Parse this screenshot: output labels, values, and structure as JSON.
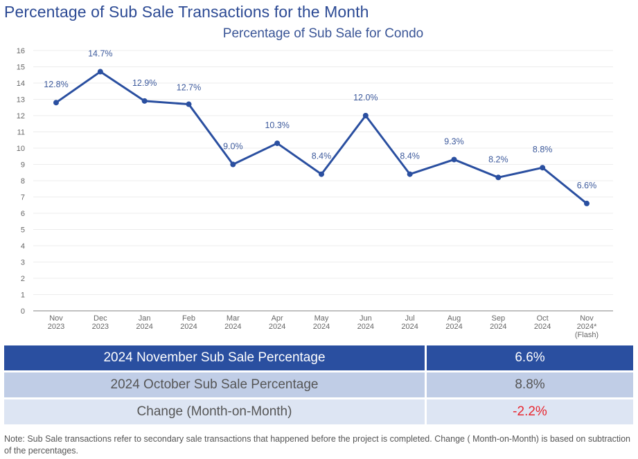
{
  "page": {
    "title": "Percentage of Sub Sale Transactions for the Month"
  },
  "chart_data": {
    "type": "line",
    "title": "Percentage of Sub Sale for Condo",
    "xlabel": "",
    "ylabel": "",
    "ylim": [
      0,
      16
    ],
    "yticks": [
      0,
      1,
      2,
      3,
      4,
      5,
      6,
      7,
      8,
      9,
      10,
      11,
      12,
      13,
      14,
      15,
      16
    ],
    "grid": true,
    "categories": [
      [
        "Nov",
        "2023"
      ],
      [
        "Dec",
        "2023"
      ],
      [
        "Jan",
        "2024"
      ],
      [
        "Feb",
        "2024"
      ],
      [
        "Mar",
        "2024"
      ],
      [
        "Apr",
        "2024"
      ],
      [
        "May",
        "2024"
      ],
      [
        "Jun",
        "2024"
      ],
      [
        "Jul",
        "2024"
      ],
      [
        "Aug",
        "2024"
      ],
      [
        "Sep",
        "2024"
      ],
      [
        "Oct",
        "2024"
      ],
      [
        "Nov",
        "2024*",
        "(Flash)"
      ]
    ],
    "series": [
      {
        "name": "Percentage of Sub Sale for Condo",
        "color": "#2a4fa0",
        "values": [
          12.8,
          14.7,
          12.9,
          12.7,
          9.0,
          10.3,
          8.4,
          12.0,
          8.4,
          9.3,
          8.2,
          8.8,
          6.6
        ],
        "labels": [
          "12.8%",
          "14.7%",
          "12.9%",
          "12.7%",
          "9.0%",
          "10.3%",
          "8.4%",
          "12.0%",
          "8.4%",
          "9.3%",
          "8.2%",
          "8.8%",
          "6.6%"
        ]
      }
    ]
  },
  "summary": {
    "rows": [
      {
        "label": "2024 November Sub Sale Percentage",
        "value": "6.6%"
      },
      {
        "label": "2024 October Sub Sale Percentage",
        "value": "8.8%"
      },
      {
        "label": "Change (Month-on-Month)",
        "value": "-2.2%"
      }
    ],
    "negative_color": "#e8262f"
  },
  "note": "Note: Sub Sale transactions refer to secondary sale transactions that happened before the project is completed. Change ( Month-on-Month) is based on subtraction of the percentages."
}
